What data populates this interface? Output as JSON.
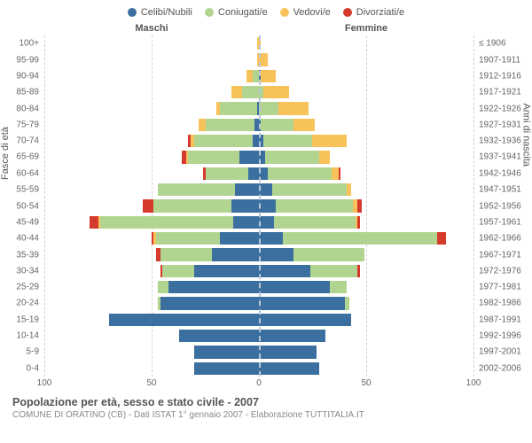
{
  "type": "population-pyramid",
  "legend": [
    {
      "label": "Celibi/Nubili",
      "color": "#3b6fa0"
    },
    {
      "label": "Coniugati/e",
      "color": "#b2d491"
    },
    {
      "label": "Vedovi/e",
      "color": "#f8c25b"
    },
    {
      "label": "Divorziati/e",
      "color": "#d63a2c"
    }
  ],
  "header_male": "Maschi",
  "header_female": "Femmine",
  "y_left_title": "Fasce di età",
  "y_right_title": "Anni di nascita",
  "age_labels": [
    "100+",
    "95-99",
    "90-94",
    "85-89",
    "80-84",
    "75-79",
    "70-74",
    "65-69",
    "60-64",
    "55-59",
    "50-54",
    "45-49",
    "40-44",
    "35-39",
    "30-34",
    "25-29",
    "20-24",
    "15-19",
    "10-14",
    "5-9",
    "0-4"
  ],
  "birth_labels": [
    "≤ 1906",
    "1907-1911",
    "1912-1916",
    "1917-1921",
    "1922-1926",
    "1927-1931",
    "1932-1936",
    "1937-1941",
    "1942-1946",
    "1947-1951",
    "1952-1956",
    "1957-1961",
    "1962-1966",
    "1967-1971",
    "1972-1976",
    "1977-1981",
    "1982-1986",
    "1987-1991",
    "1992-1996",
    "1997-2001",
    "2002-2006"
  ],
  "x_max": 100,
  "x_ticks": [
    100,
    50,
    0,
    50,
    100
  ],
  "male": [
    {
      "single": 0,
      "married": 0,
      "widowed": 1,
      "divorced": 0
    },
    {
      "single": 0,
      "married": 0,
      "widowed": 1,
      "divorced": 0
    },
    {
      "single": 0,
      "married": 3,
      "widowed": 3,
      "divorced": 0
    },
    {
      "single": 0,
      "married": 8,
      "widowed": 5,
      "divorced": 0
    },
    {
      "single": 1,
      "married": 17,
      "widowed": 2,
      "divorced": 0
    },
    {
      "single": 2,
      "married": 23,
      "widowed": 3,
      "divorced": 0
    },
    {
      "single": 3,
      "married": 27,
      "widowed": 2,
      "divorced": 1
    },
    {
      "single": 9,
      "married": 24,
      "widowed": 1,
      "divorced": 2
    },
    {
      "single": 5,
      "married": 20,
      "widowed": 0,
      "divorced": 1
    },
    {
      "single": 11,
      "married": 36,
      "widowed": 0,
      "divorced": 0
    },
    {
      "single": 13,
      "married": 36,
      "widowed": 0,
      "divorced": 5
    },
    {
      "single": 12,
      "married": 62,
      "widowed": 1,
      "divorced": 4
    },
    {
      "single": 18,
      "married": 30,
      "widowed": 1,
      "divorced": 1
    },
    {
      "single": 22,
      "married": 24,
      "widowed": 0,
      "divorced": 2
    },
    {
      "single": 30,
      "married": 15,
      "widowed": 0,
      "divorced": 1
    },
    {
      "single": 42,
      "married": 5,
      "widowed": 0,
      "divorced": 0
    },
    {
      "single": 46,
      "married": 1,
      "widowed": 0,
      "divorced": 0
    },
    {
      "single": 70,
      "married": 0,
      "widowed": 0,
      "divorced": 0
    },
    {
      "single": 37,
      "married": 0,
      "widowed": 0,
      "divorced": 0
    },
    {
      "single": 30,
      "married": 0,
      "widowed": 0,
      "divorced": 0
    },
    {
      "single": 30,
      "married": 0,
      "widowed": 0,
      "divorced": 0
    }
  ],
  "female": [
    {
      "single": 0,
      "married": 0,
      "widowed": 1,
      "divorced": 0
    },
    {
      "single": 0,
      "married": 0,
      "widowed": 4,
      "divorced": 0
    },
    {
      "single": 1,
      "married": 0,
      "widowed": 7,
      "divorced": 0
    },
    {
      "single": 0,
      "married": 2,
      "widowed": 12,
      "divorced": 0
    },
    {
      "single": 0,
      "married": 9,
      "widowed": 14,
      "divorced": 0
    },
    {
      "single": 1,
      "married": 15,
      "widowed": 10,
      "divorced": 0
    },
    {
      "single": 2,
      "married": 23,
      "widowed": 16,
      "divorced": 0
    },
    {
      "single": 3,
      "married": 25,
      "widowed": 5,
      "divorced": 0
    },
    {
      "single": 4,
      "married": 30,
      "widowed": 3,
      "divorced": 1
    },
    {
      "single": 6,
      "married": 35,
      "widowed": 2,
      "divorced": 0
    },
    {
      "single": 8,
      "married": 36,
      "widowed": 2,
      "divorced": 2
    },
    {
      "single": 7,
      "married": 38,
      "widowed": 1,
      "divorced": 1
    },
    {
      "single": 11,
      "married": 72,
      "widowed": 0,
      "divorced": 4
    },
    {
      "single": 16,
      "married": 33,
      "widowed": 0,
      "divorced": 0
    },
    {
      "single": 24,
      "married": 22,
      "widowed": 0,
      "divorced": 1
    },
    {
      "single": 33,
      "married": 8,
      "widowed": 0,
      "divorced": 0
    },
    {
      "single": 40,
      "married": 2,
      "widowed": 0,
      "divorced": 0
    },
    {
      "single": 43,
      "married": 0,
      "widowed": 0,
      "divorced": 0
    },
    {
      "single": 31,
      "married": 0,
      "widowed": 0,
      "divorced": 0
    },
    {
      "single": 27,
      "married": 0,
      "widowed": 0,
      "divorced": 0
    },
    {
      "single": 28,
      "married": 0,
      "widowed": 0,
      "divorced": 0
    }
  ],
  "background_color": "#ffffff",
  "grid_color": "#d0d0d0",
  "center_line_color": "#b8c8d8",
  "footer_title": "Popolazione per età, sesso e stato civile - 2007",
  "footer_sub": "COMUNE DI ORATINO (CB) - Dati ISTAT 1° gennaio 2007 - Elaborazione TUTTITALIA.IT"
}
